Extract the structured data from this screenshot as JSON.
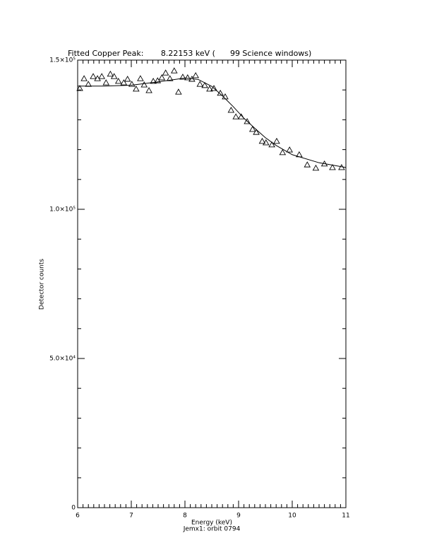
{
  "chart_data": {
    "type": "scatter",
    "title": "Fitted Copper Peak:       8.22153 keV (      99 Science windows)",
    "x_label": "Energy (keV)",
    "y_label": "Detector counts",
    "footnote": "Jemx1: orbit 0794",
    "xlim": [
      6,
      11
    ],
    "ylim": [
      0,
      150000
    ],
    "xticks": [
      6,
      7,
      8,
      9,
      10,
      11
    ],
    "xminor_ticks": [
      6.1,
      6.2,
      6.3,
      6.4,
      6.5,
      6.6,
      6.7,
      6.8,
      6.9,
      7.1,
      7.2,
      7.3,
      7.4,
      7.5,
      7.6,
      7.7,
      7.8,
      7.9,
      8.1,
      8.2,
      8.3,
      8.4,
      8.5,
      8.6,
      8.7,
      8.8,
      8.9,
      9.1,
      9.2,
      9.3,
      9.4,
      9.5,
      9.6,
      9.7,
      9.8,
      9.9,
      10.1,
      10.2,
      10.3,
      10.4,
      10.5,
      10.6,
      10.7,
      10.8,
      10.9
    ],
    "yticks": [
      {
        "value": 0,
        "label": "0"
      },
      {
        "value": 50000,
        "label": "5.0×10⁴"
      },
      {
        "value": 100000,
        "label": "1.0×10⁵"
      },
      {
        "value": 150000,
        "label": "1.5×10⁵"
      }
    ],
    "yminor_ticks": [
      10000,
      20000,
      30000,
      40000,
      60000,
      70000,
      80000,
      90000,
      110000,
      120000,
      130000,
      140000
    ],
    "color": "#000000",
    "points": {
      "x": [
        6.04,
        6.12,
        6.2,
        6.29,
        6.37,
        6.45,
        6.53,
        6.61,
        6.68,
        6.76,
        6.86,
        6.93,
        7.01,
        7.09,
        7.17,
        7.24,
        7.33,
        7.41,
        7.49,
        7.57,
        7.64,
        7.72,
        7.8,
        7.88,
        7.96,
        8.05,
        8.13,
        8.2,
        8.28,
        8.37,
        8.46,
        8.54,
        8.66,
        8.75,
        8.86,
        8.95,
        9.05,
        9.16,
        9.26,
        9.33,
        9.44,
        9.51,
        9.62,
        9.71,
        9.82,
        9.95,
        10.13,
        10.28,
        10.44,
        10.6,
        10.75,
        10.92
      ],
      "y": [
        140500,
        143800,
        141900,
        144500,
        143800,
        144500,
        142400,
        145300,
        144500,
        142900,
        142400,
        143600,
        141900,
        140300,
        143800,
        141700,
        139800,
        142900,
        143100,
        144100,
        145700,
        143800,
        146400,
        139300,
        144300,
        144100,
        143600,
        144800,
        141900,
        141500,
        140300,
        140500,
        138900,
        137700,
        133200,
        131000,
        131000,
        129400,
        126800,
        125800,
        122800,
        122300,
        121600,
        122800,
        119000,
        119900,
        118300,
        114900,
        113800,
        115200,
        114000,
        114000
      ]
    },
    "fit": {
      "x": [
        6,
        6.5,
        7,
        7.5,
        8,
        8.25,
        8.5,
        8.7,
        8.9,
        9.1,
        9.3,
        9.5,
        9.7,
        10,
        10.5,
        11
      ],
      "y": [
        141300,
        141300,
        141600,
        142700,
        144000,
        143500,
        141200,
        138000,
        134400,
        130500,
        127200,
        124000,
        121400,
        118300,
        115600,
        114000
      ]
    }
  }
}
